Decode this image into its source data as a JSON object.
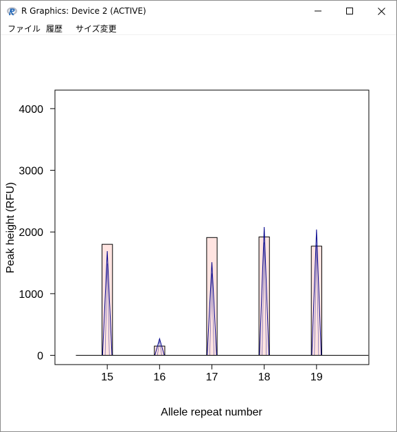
{
  "window": {
    "title": "R Graphics: Device 2 (ACTIVE)",
    "icon": "r-logo-icon"
  },
  "menu": {
    "items": [
      "ファイル",
      "履歴",
      "サイズ変更"
    ]
  },
  "colors": {
    "bar_fill": "#ffe4e1",
    "bar_border": "#000000",
    "peak_line": "#00008b",
    "baseline": "#000000",
    "plot_frame": "#000000"
  },
  "chart_data": {
    "type": "bar",
    "categories": [
      "15",
      "16",
      "17",
      "18",
      "19"
    ],
    "x": [
      15,
      16,
      17,
      18,
      19
    ],
    "values": [
      1800,
      150,
      1910,
      1920,
      1770
    ],
    "peak_heights": [
      1690,
      270,
      1510,
      2080,
      2040
    ],
    "title": "",
    "xlabel": "Allele repeat number",
    "ylabel": "Peak height (RFU)",
    "xlim": [
      14.0,
      20.0
    ],
    "ylim": [
      -150,
      4300
    ],
    "yticks": [
      0,
      1000,
      2000,
      3000,
      4000
    ],
    "yticklabels": [
      "0",
      "1000",
      "2000",
      "3000",
      "4000"
    ],
    "xticks": [
      15,
      16,
      17,
      18,
      19
    ],
    "xticklabels": [
      "15",
      "16",
      "17",
      "18",
      "19"
    ],
    "baseline_x_range": [
      14.4,
      19.99
    ],
    "grid": false,
    "legend": "none"
  }
}
